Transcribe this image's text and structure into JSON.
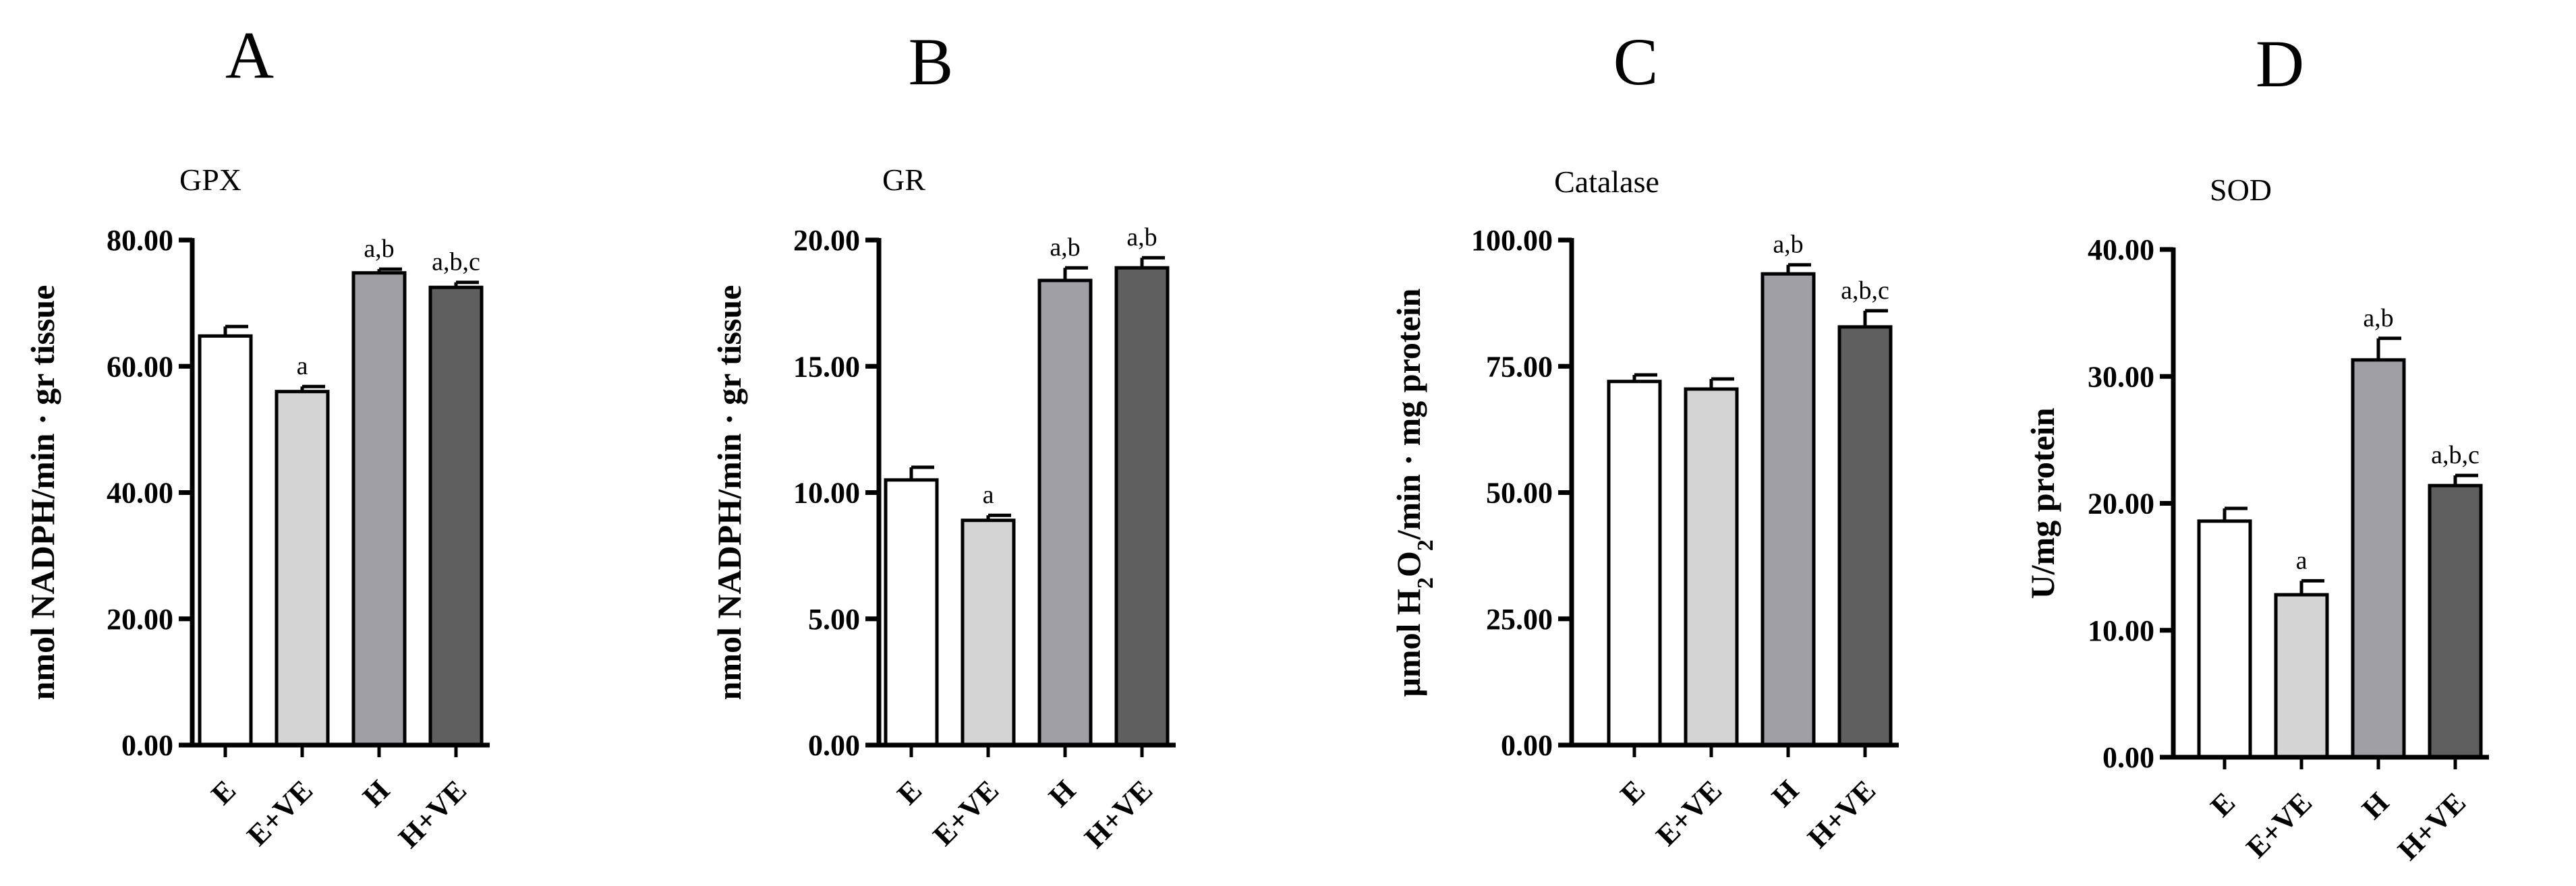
{
  "chart_data": [
    {
      "type": "bar",
      "panel": "A",
      "title": "GPX",
      "ylabel_parts": [
        "nmol NADPH/min · gr tissue"
      ],
      "categories": [
        "E",
        "E+VE",
        "H",
        "H+VE"
      ],
      "values": [
        64.8,
        56.0,
        74.8,
        72.5
      ],
      "errors": [
        1.5,
        0.8,
        0.6,
        0.8
      ],
      "significance": [
        "",
        "a",
        "a,b",
        "a,b,c"
      ],
      "colors": [
        "#ffffff",
        "#d4d4d4",
        "#a0a0a4",
        "#5f5f5f"
      ],
      "ylim": [
        0,
        80
      ],
      "ticks": [
        0,
        20,
        40,
        60,
        80
      ],
      "tick_labels": [
        "0.00",
        "20.00",
        "40.00",
        "60.00",
        "80.00"
      ]
    },
    {
      "type": "bar",
      "panel": "B",
      "title": "GR",
      "ylabel_parts": [
        "nmol NADPH/min · gr tissue"
      ],
      "categories": [
        "E",
        "E+VE",
        "H",
        "H+VE"
      ],
      "values": [
        10.5,
        8.9,
        18.4,
        18.9
      ],
      "errors": [
        0.5,
        0.2,
        0.5,
        0.4
      ],
      "significance": [
        "",
        "a",
        "a,b",
        "a,b"
      ],
      "colors": [
        "#ffffff",
        "#d4d4d4",
        "#a0a0a4",
        "#5f5f5f"
      ],
      "ylim": [
        0,
        20
      ],
      "ticks": [
        0,
        5,
        10,
        15,
        20
      ],
      "tick_labels": [
        "0.00",
        "5.00",
        "10.00",
        "15.00",
        "20.00"
      ]
    },
    {
      "type": "bar",
      "panel": "C",
      "title": "Catalase",
      "ylabel_parts": [
        "μmol H",
        "2",
        "O",
        "2",
        "/min · mg protein"
      ],
      "categories": [
        "E",
        "E+VE",
        "H",
        "H+VE"
      ],
      "values": [
        72.0,
        70.5,
        93.3,
        82.8
      ],
      "errors": [
        1.3,
        2.0,
        1.8,
        3.2
      ],
      "significance": [
        "",
        "",
        "a,b",
        "a,b,c"
      ],
      "colors": [
        "#ffffff",
        "#d4d4d4",
        "#a0a0a4",
        "#5f5f5f"
      ],
      "ylim": [
        0,
        100
      ],
      "ticks": [
        0,
        25,
        50,
        75,
        100
      ],
      "tick_labels": [
        "0.00",
        "25.00",
        "50.00",
        "75.00",
        "100.00"
      ]
    },
    {
      "type": "bar",
      "panel": "D",
      "title": "SOD",
      "ylabel_parts": [
        "U/mg protein"
      ],
      "categories": [
        "E",
        "E+VE",
        "H",
        "H+VE"
      ],
      "values": [
        18.6,
        12.8,
        31.3,
        21.4
      ],
      "errors": [
        1.0,
        1.1,
        1.7,
        0.8
      ],
      "significance": [
        "",
        "a",
        "a,b",
        "a,b,c"
      ],
      "colors": [
        "#ffffff",
        "#d4d4d4",
        "#a0a0a4",
        "#5f5f5f"
      ],
      "ylim": [
        0,
        40
      ],
      "ticks": [
        0,
        10,
        20,
        30,
        40
      ],
      "tick_labels": [
        "0.00",
        "10.00",
        "20.00",
        "30.00",
        "40.00"
      ]
    }
  ]
}
